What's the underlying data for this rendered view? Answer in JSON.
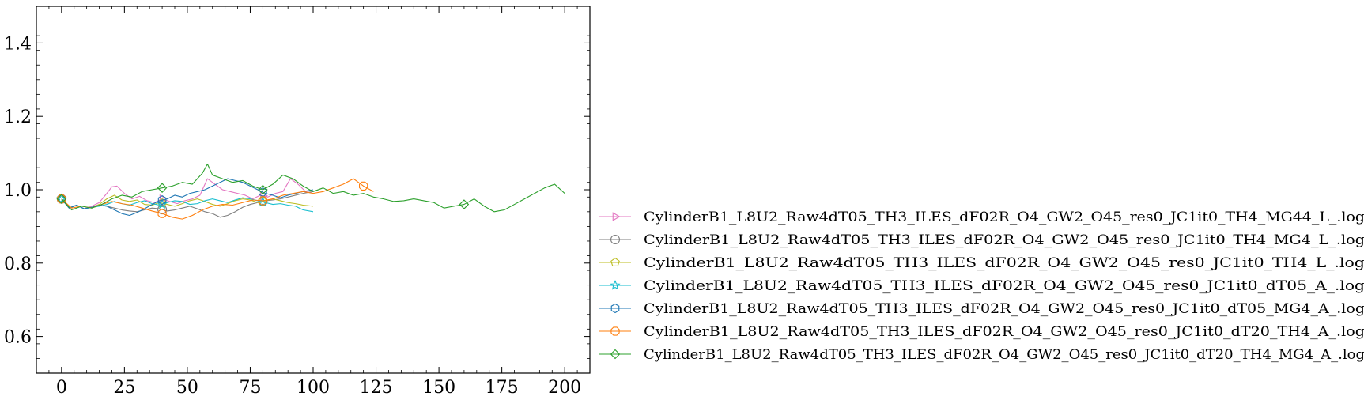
{
  "chart_data": {
    "type": "line",
    "title": "",
    "xlabel": "",
    "ylabel": "",
    "xlim": [
      -10,
      210
    ],
    "ylim": [
      0.5,
      1.5
    ],
    "xticks": [
      0,
      25,
      50,
      75,
      100,
      125,
      150,
      175,
      200
    ],
    "yticks": [
      0.6,
      0.8,
      1.0,
      1.2,
      1.4
    ],
    "xtick_labels": [
      "0",
      "25",
      "50",
      "75",
      "100",
      "125",
      "150",
      "175",
      "200"
    ],
    "ytick_labels": [
      "0.6",
      "0.8",
      "1.0",
      "1.2",
      "1.4"
    ],
    "legend_position": "lower-right-outside",
    "series": [
      {
        "name": "CylinderB1_L8U2_Raw4dT05_TH3_ILES_dF02R_O4_GW2_O45_res0_JC1it0_TH4_MG44_L_.log",
        "color": "#e377c2",
        "marker": "triangle-right",
        "x": [
          0,
          3,
          6,
          9,
          12,
          15,
          18,
          20,
          22,
          25,
          28,
          31,
          34,
          37,
          40,
          43,
          46,
          49,
          52,
          55,
          58,
          61,
          64,
          67,
          70,
          73,
          76,
          79,
          82,
          85,
          88,
          91,
          94,
          97,
          100
        ],
        "y": [
          0.975,
          0.95,
          0.958,
          0.948,
          0.955,
          0.965,
          0.99,
          1.008,
          1.01,
          0.99,
          0.975,
          0.982,
          0.97,
          0.965,
          0.975,
          0.968,
          0.962,
          0.97,
          0.975,
          0.985,
          1.03,
          1.015,
          1.0,
          0.995,
          0.99,
          0.985,
          0.975,
          0.985,
          0.98,
          0.99,
          0.995,
          1.03,
          1.015,
          0.995,
          0.99
        ],
        "markers_at": [
          0,
          40,
          80
        ]
      },
      {
        "name": "CylinderB1_L8U2_Raw4dT05_TH3_ILES_dF02R_O4_GW2_O45_res0_JC1it0_TH4_MG4_L_.log",
        "color": "#7f7f7f",
        "marker": "circle",
        "x": [
          0,
          3,
          6,
          9,
          12,
          15,
          18,
          21,
          24,
          27,
          30,
          33,
          36,
          39,
          42,
          45,
          48,
          51,
          54,
          57,
          60,
          63,
          66,
          69,
          72,
          75,
          78,
          81,
          84,
          87,
          90,
          93,
          96,
          100
        ],
        "y": [
          0.975,
          0.95,
          0.958,
          0.948,
          0.952,
          0.958,
          0.955,
          0.95,
          0.945,
          0.942,
          0.94,
          0.945,
          0.95,
          0.948,
          0.942,
          0.945,
          0.95,
          0.955,
          0.948,
          0.94,
          0.935,
          0.925,
          0.93,
          0.94,
          0.952,
          0.96,
          0.965,
          0.97,
          0.972,
          0.975,
          0.98,
          0.985,
          0.99,
          0.995
        ],
        "markers_at": [
          0,
          40,
          80
        ]
      },
      {
        "name": "CylinderB1_L8U2_Raw4dT05_TH3_ILES_dF02R_O4_GW2_O45_res0_JC1it0_TH4_L_.log",
        "color": "#bcbd22",
        "marker": "pentagon",
        "x": [
          0,
          3,
          6,
          9,
          12,
          15,
          18,
          21,
          24,
          27,
          30,
          33,
          36,
          39,
          42,
          45,
          48,
          51,
          54,
          57,
          60,
          63,
          66,
          69,
          72,
          75,
          78,
          81,
          84,
          87,
          90,
          93,
          96,
          100
        ],
        "y": [
          0.975,
          0.95,
          0.958,
          0.948,
          0.952,
          0.96,
          0.975,
          0.985,
          0.972,
          0.968,
          0.972,
          0.96,
          0.958,
          0.965,
          0.96,
          0.955,
          0.962,
          0.97,
          0.975,
          0.968,
          0.96,
          0.955,
          0.962,
          0.97,
          0.975,
          0.972,
          0.965,
          0.97,
          0.975,
          0.97,
          0.965,
          0.962,
          0.958,
          0.955
        ],
        "markers_at": [
          0,
          40,
          80
        ]
      },
      {
        "name": "CylinderB1_L8U2_Raw4dT05_TH3_ILES_dF02R_O4_GW2_O45_res0_JC1it0_dT05_A_.log",
        "color": "#17becf",
        "marker": "star",
        "x": [
          0,
          3,
          6,
          9,
          12,
          15,
          18,
          21,
          24,
          27,
          30,
          33,
          36,
          39,
          42,
          45,
          48,
          51,
          54,
          57,
          60,
          63,
          66,
          69,
          72,
          75,
          78,
          81,
          84,
          87,
          90,
          93,
          96,
          100
        ],
        "y": [
          0.975,
          0.95,
          0.958,
          0.948,
          0.952,
          0.955,
          0.96,
          0.968,
          0.962,
          0.958,
          0.965,
          0.97,
          0.962,
          0.958,
          0.965,
          0.97,
          0.968,
          0.96,
          0.962,
          0.97,
          0.975,
          0.97,
          0.965,
          0.972,
          0.978,
          0.975,
          0.97,
          0.965,
          0.96,
          0.962,
          0.958,
          0.955,
          0.945,
          0.94
        ],
        "markers_at": [
          0,
          40,
          80
        ]
      },
      {
        "name": "CylinderB1_L8U2_Raw4dT05_TH3_ILES_dF02R_O4_GW2_O45_res0_JC1it0_dT05_MG4_A_.log",
        "color": "#1f77b4",
        "marker": "hexagon",
        "x": [
          0,
          3,
          6,
          9,
          12,
          15,
          18,
          21,
          24,
          27,
          30,
          33,
          36,
          39,
          42,
          45,
          48,
          51,
          54,
          57,
          60,
          63,
          66,
          69,
          72,
          75,
          78,
          81,
          84,
          87,
          90,
          93,
          96,
          100
        ],
        "y": [
          0.975,
          0.95,
          0.958,
          0.948,
          0.952,
          0.958,
          0.955,
          0.945,
          0.935,
          0.93,
          0.938,
          0.948,
          0.96,
          0.97,
          0.975,
          0.985,
          0.98,
          0.99,
          0.995,
          1.0,
          1.01,
          1.02,
          1.03,
          1.025,
          1.02,
          1.01,
          1.0,
          0.99,
          0.985,
          0.978,
          0.985,
          0.99,
          0.995,
          1.0
        ],
        "markers_at": [
          0,
          40,
          80
        ]
      },
      {
        "name": "CylinderB1_L8U2_Raw4dT05_TH3_ILES_dF02R_O4_GW2_O45_res0_JC1it0_dT20_TH4_A_.log",
        "color": "#ff7f0e",
        "marker": "octagon",
        "x": [
          0,
          4,
          8,
          12,
          16,
          20,
          24,
          28,
          32,
          36,
          40,
          44,
          48,
          52,
          56,
          60,
          64,
          68,
          72,
          76,
          80,
          84,
          88,
          92,
          96,
          100,
          104,
          108,
          112,
          116,
          120,
          124
        ],
        "y": [
          0.975,
          0.95,
          0.955,
          0.95,
          0.96,
          0.968,
          0.962,
          0.958,
          0.95,
          0.942,
          0.935,
          0.925,
          0.92,
          0.93,
          0.945,
          0.955,
          0.96,
          0.958,
          0.965,
          0.972,
          0.97,
          0.975,
          0.985,
          0.99,
          0.995,
          0.99,
          0.995,
          1.005,
          1.015,
          1.03,
          1.01,
          0.995
        ],
        "markers_at": [
          0,
          40,
          80,
          120
        ]
      },
      {
        "name": "CylinderB1_L8U2_Raw4dT05_TH3_ILES_dF02R_O4_GW2_O45_res0_JC1it0_dT20_TH4_MG4_A_.log",
        "color": "#2ca02c",
        "marker": "diamond",
        "x": [
          0,
          4,
          8,
          12,
          16,
          20,
          24,
          28,
          32,
          36,
          40,
          44,
          48,
          52,
          56,
          58,
          60,
          64,
          68,
          72,
          76,
          80,
          84,
          88,
          92,
          96,
          100,
          104,
          108,
          112,
          116,
          120,
          124,
          128,
          132,
          136,
          140,
          144,
          148,
          152,
          156,
          160,
          164,
          168,
          172,
          176,
          180,
          184,
          188,
          192,
          196,
          200
        ],
        "y": [
          0.975,
          0.945,
          0.955,
          0.95,
          0.96,
          0.975,
          0.985,
          0.98,
          0.995,
          1.0,
          1.005,
          1.01,
          1.02,
          1.015,
          1.045,
          1.07,
          1.04,
          1.03,
          1.02,
          1.025,
          1.01,
          1.0,
          1.015,
          1.04,
          1.03,
          1.01,
          0.995,
          1.005,
          0.99,
          0.995,
          0.985,
          0.99,
          0.98,
          0.975,
          0.968,
          0.97,
          0.975,
          0.97,
          0.965,
          0.95,
          0.955,
          0.96,
          0.975,
          0.955,
          0.94,
          0.945,
          0.96,
          0.975,
          0.99,
          1.005,
          1.015,
          0.99
        ],
        "markers_at": [
          0,
          40,
          80,
          160
        ]
      }
    ]
  }
}
